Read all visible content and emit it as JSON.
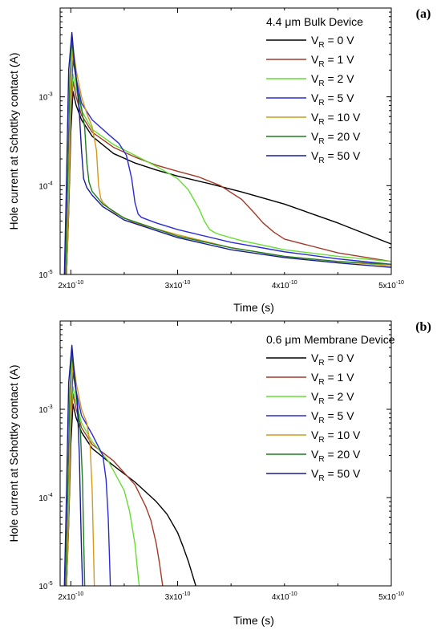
{
  "colors": {
    "0V": "#000000",
    "1V": "#a33a2a",
    "2V": "#66dd33",
    "5V": "#2a2ad8",
    "10V": "#d49a1c",
    "20V": "#1f7d1f",
    "50V": "#1a1a99"
  },
  "chart_data": [
    {
      "type": "line",
      "panel_label": "(a)",
      "xlabel": "Time (s)",
      "ylabel": "Hole current at Schottky contact (A)",
      "xlim": [
        1.9e-10,
        5e-10
      ],
      "ylim": [
        1e-05,
        0.01
      ],
      "yscale": "log",
      "grid": false,
      "legend_title": "4.4 μm Bulk Device",
      "legend_position": "top-right",
      "xticks": [
        {
          "value": 2e-10,
          "label": "2x10",
          "exp": "-10"
        },
        {
          "value": 3e-10,
          "label": "3x10",
          "exp": "-10"
        },
        {
          "value": 4e-10,
          "label": "4x10",
          "exp": "-10"
        },
        {
          "value": 5e-10,
          "label": "5x10",
          "exp": "-10"
        }
      ],
      "yticks": [
        {
          "value": 1e-05,
          "label": "10",
          "exp": "-5"
        },
        {
          "value": 0.0001,
          "label": "10",
          "exp": "-4"
        },
        {
          "value": 0.001,
          "label": "10",
          "exp": "-3"
        }
      ],
      "series": [
        {
          "name": "V_R = 0 V",
          "sub": "R",
          "pre": "V",
          "post": " =  0 V",
          "color_key": "0V",
          "x": [
            1.96e-10,
            1.98e-10,
            2e-10,
            2.02e-10,
            2.05e-10,
            2.1e-10,
            2.2e-10,
            2.4e-10,
            2.6e-10,
            2.8e-10,
            3e-10,
            3.3e-10,
            3.6e-10,
            4e-10,
            4.5e-10,
            5e-10
          ],
          "y": [
            1e-05,
            5e-05,
            0.0004,
            0.00115,
            0.0008,
            0.00055,
            0.00036,
            0.00023,
            0.00018,
            0.00015,
            0.000128,
            0.000105,
            8.5e-05,
            6.2e-05,
            3.8e-05,
            2.2e-05
          ]
        },
        {
          "name": "V_R = 1 V",
          "sub": "R",
          "pre": "V",
          "post": " =  1 V",
          "color_key": "1V",
          "x": [
            1.96e-10,
            1.98e-10,
            2e-10,
            2.02e-10,
            2.05e-10,
            2.1e-10,
            2.2e-10,
            2.4e-10,
            2.6e-10,
            2.8e-10,
            3e-10,
            3.2e-10,
            3.4e-10,
            3.6e-10,
            3.7e-10,
            3.8e-10,
            3.9e-10,
            4e-10,
            4.5e-10,
            5e-10
          ],
          "y": [
            1e-05,
            6e-05,
            0.0006,
            0.0015,
            0.001,
            0.00062,
            0.0004,
            0.00027,
            0.00021,
            0.00017,
            0.000145,
            0.000125,
            0.0001,
            7e-05,
            5.2e-05,
            3.8e-05,
            3e-05,
            2.5e-05,
            1.75e-05,
            1.4e-05
          ]
        },
        {
          "name": "V_R = 2 V",
          "sub": "R",
          "pre": "V",
          "post": " =  2 V",
          "color_key": "2V",
          "x": [
            1.96e-10,
            1.98e-10,
            2e-10,
            2.02e-10,
            2.05e-10,
            2.1e-10,
            2.2e-10,
            2.4e-10,
            2.6e-10,
            2.8e-10,
            3e-10,
            3.1e-10,
            3.2e-10,
            3.25e-10,
            3.3e-10,
            3.35e-10,
            3.4e-10,
            3.6e-10,
            4e-10,
            4.5e-10,
            5e-10
          ],
          "y": [
            1e-05,
            6e-05,
            0.0008,
            0.0018,
            0.0012,
            0.0007,
            0.00043,
            0.00029,
            0.00022,
            0.000165,
            0.00012,
            9e-05,
            5.5e-05,
            4e-05,
            3.2e-05,
            2.95e-05,
            2.8e-05,
            2.4e-05,
            1.9e-05,
            1.6e-05,
            1.4e-05
          ]
        },
        {
          "name": "V_R = 5 V",
          "sub": "R",
          "pre": "V",
          "post": " =  5 V",
          "color_key": "5V",
          "x": [
            1.96e-10,
            1.98e-10,
            2e-10,
            2.02e-10,
            2.05e-10,
            2.1e-10,
            2.2e-10,
            2.35e-10,
            2.45e-10,
            2.52e-10,
            2.57e-10,
            2.6e-10,
            2.63e-10,
            2.66e-10,
            2.8e-10,
            3e-10,
            3.5e-10,
            4e-10,
            4.5e-10,
            5e-10
          ],
          "y": [
            1e-05,
            7e-05,
            0.001,
            0.0026,
            0.0016,
            0.00085,
            0.00055,
            0.00038,
            0.0003,
            0.00022,
            0.00012,
            6.5e-05,
            4.8e-05,
            4.4e-05,
            3.8e-05,
            3.2e-05,
            2.3e-05,
            1.8e-05,
            1.5e-05,
            1.3e-05
          ]
        },
        {
          "name": "V_R = 10 V",
          "sub": "R",
          "pre": "V",
          "post": " = 10 V",
          "color_key": "10V",
          "x": [
            1.96e-10,
            1.98e-10,
            2e-10,
            2.02e-10,
            2.05e-10,
            2.1e-10,
            2.15e-10,
            2.2e-10,
            2.24e-10,
            2.26e-10,
            2.28e-10,
            2.3e-10,
            2.4e-10,
            2.6e-10,
            3e-10,
            3.5e-10,
            4e-10,
            4.5e-10,
            5e-10
          ],
          "y": [
            1e-05,
            8e-05,
            0.0012,
            0.0036,
            0.002,
            0.001,
            0.00065,
            0.00046,
            0.00025,
            0.0001,
            7.2e-05,
            6.5e-05,
            5e-05,
            3.8e-05,
            2.8e-05,
            2e-05,
            1.6e-05,
            1.4e-05,
            1.25e-05
          ]
        },
        {
          "name": "V_R = 20 V",
          "sub": "R",
          "pre": "V",
          "post": " = 20 V",
          "color_key": "20V",
          "x": [
            1.95e-10,
            1.97e-10,
            1.99e-10,
            2.01e-10,
            2.03e-10,
            2.06e-10,
            2.1e-10,
            2.13e-10,
            2.15e-10,
            2.17e-10,
            2.2e-10,
            2.3e-10,
            2.5e-10,
            3e-10,
            3.5e-10,
            4e-10,
            4.5e-10,
            5e-10
          ],
          "y": [
            1e-05,
            0.0001,
            0.0015,
            0.0044,
            0.0024,
            0.0012,
            0.00075,
            0.00045,
            0.00018,
            0.00011,
            8.6e-05,
            6.2e-05,
            4.3e-05,
            2.7e-05,
            2e-05,
            1.6e-05,
            1.4e-05,
            1.3e-05
          ]
        },
        {
          "name": "V_R = 50 V",
          "sub": "R",
          "pre": "V",
          "post": " = 50 V",
          "color_key": "50V",
          "x": [
            1.94e-10,
            1.96e-10,
            1.98e-10,
            2.01e-10,
            2.03e-10,
            2.06e-10,
            2.08e-10,
            2.1e-10,
            2.12e-10,
            2.15e-10,
            2.2e-10,
            2.3e-10,
            2.5e-10,
            3e-10,
            3.5e-10,
            4e-10,
            4.5e-10,
            5e-10
          ],
          "y": [
            1e-05,
            0.00012,
            0.002,
            0.0053,
            0.0028,
            0.0013,
            0.00065,
            0.00025,
            0.00012,
            9.5e-05,
            7.8e-05,
            5.8e-05,
            4.1e-05,
            2.6e-05,
            1.9e-05,
            1.55e-05,
            1.35e-05,
            1.2e-05
          ]
        }
      ]
    },
    {
      "type": "line",
      "panel_label": "(b)",
      "xlabel": "Time (s)",
      "ylabel": "Hole current at Schottky contact (A)",
      "xlim": [
        1.9e-10,
        5e-10
      ],
      "ylim": [
        1e-05,
        0.01
      ],
      "yscale": "log",
      "grid": false,
      "legend_title": "0.6 μm Membrane Device",
      "legend_position": "top-right",
      "xticks": [
        {
          "value": 2e-10,
          "label": "2x10",
          "exp": "-10"
        },
        {
          "value": 3e-10,
          "label": "3x10",
          "exp": "-10"
        },
        {
          "value": 4e-10,
          "label": "4x10",
          "exp": "-10"
        },
        {
          "value": 5e-10,
          "label": "5x10",
          "exp": "-10"
        }
      ],
      "yticks": [
        {
          "value": 1e-05,
          "label": "10",
          "exp": "-5"
        },
        {
          "value": 0.0001,
          "label": "10",
          "exp": "-4"
        },
        {
          "value": 0.001,
          "label": "10",
          "exp": "-3"
        }
      ],
      "series": [
        {
          "name": "V_R = 0 V",
          "sub": "R",
          "pre": "V",
          "post": " =  0 V",
          "color_key": "0V",
          "x": [
            1.96e-10,
            1.98e-10,
            2e-10,
            2.02e-10,
            2.05e-10,
            2.1e-10,
            2.2e-10,
            2.4e-10,
            2.6e-10,
            2.8e-10,
            2.9e-10,
            3e-10,
            3.05e-10,
            3.1e-10,
            3.15e-10,
            3.17e-10
          ],
          "y": [
            1e-05,
            5e-05,
            0.0004,
            0.00115,
            0.0008,
            0.00055,
            0.00036,
            0.00023,
            0.00015,
            9e-05,
            6.5e-05,
            4e-05,
            2.8e-05,
            1.9e-05,
            1.2e-05,
            1e-05
          ]
        },
        {
          "name": "V_R = 1 V",
          "sub": "R",
          "pre": "V",
          "post": " =  1 V",
          "color_key": "1V",
          "x": [
            1.96e-10,
            1.98e-10,
            2e-10,
            2.02e-10,
            2.05e-10,
            2.1e-10,
            2.2e-10,
            2.4e-10,
            2.6e-10,
            2.7e-10,
            2.75e-10,
            2.8e-10,
            2.83e-10,
            2.86e-10
          ],
          "y": [
            1e-05,
            6e-05,
            0.0006,
            0.0015,
            0.001,
            0.00062,
            0.0004,
            0.00026,
            0.00014,
            8e-05,
            5.5e-05,
            3e-05,
            1.8e-05,
            1e-05
          ]
        },
        {
          "name": "V_R = 2 V",
          "sub": "R",
          "pre": "V",
          "post": " =  2 V",
          "color_key": "2V",
          "x": [
            1.96e-10,
            1.98e-10,
            2e-10,
            2.02e-10,
            2.05e-10,
            2.1e-10,
            2.2e-10,
            2.35e-10,
            2.5e-10,
            2.55e-10,
            2.6e-10,
            2.62e-10,
            2.64e-10
          ],
          "y": [
            1e-05,
            6e-05,
            0.0008,
            0.0018,
            0.0012,
            0.0007,
            0.00043,
            0.00026,
            0.00012,
            7e-05,
            3e-05,
            1.7e-05,
            1e-05
          ]
        },
        {
          "name": "V_R = 5 V",
          "sub": "R",
          "pre": "V",
          "post": " =  5 V",
          "color_key": "5V",
          "x": [
            1.96e-10,
            1.98e-10,
            2e-10,
            2.02e-10,
            2.05e-10,
            2.1e-10,
            2.2e-10,
            2.3e-10,
            2.33e-10,
            2.35e-10,
            2.36e-10,
            2.37e-10
          ],
          "y": [
            1e-05,
            7e-05,
            0.001,
            0.0026,
            0.0016,
            0.00085,
            0.00052,
            0.0003,
            0.00016,
            6e-05,
            2.5e-05,
            1e-05
          ]
        },
        {
          "name": "V_R = 10 V",
          "sub": "R",
          "pre": "V",
          "post": " = 10 V",
          "color_key": "10V",
          "x": [
            1.96e-10,
            1.98e-10,
            2e-10,
            2.02e-10,
            2.05e-10,
            2.1e-10,
            2.15e-10,
            2.18e-10,
            2.2e-10,
            2.21e-10,
            2.22e-10
          ],
          "y": [
            1e-05,
            8e-05,
            0.0012,
            0.0036,
            0.002,
            0.001,
            0.0007,
            0.0004,
            0.00012,
            3.5e-05,
            1e-05
          ]
        },
        {
          "name": "V_R = 20 V",
          "sub": "R",
          "pre": "V",
          "post": " = 20 V",
          "color_key": "20V",
          "x": [
            1.95e-10,
            1.97e-10,
            1.99e-10,
            2.01e-10,
            2.03e-10,
            2.06e-10,
            2.09e-10,
            2.11e-10,
            2.12e-10,
            2.13e-10
          ],
          "y": [
            1e-05,
            0.0001,
            0.0015,
            0.0044,
            0.0024,
            0.0012,
            0.00055,
            0.00015,
            3.5e-05,
            1e-05
          ]
        },
        {
          "name": "V_R = 50 V",
          "sub": "R",
          "pre": "V",
          "post": " = 50 V",
          "color_key": "50V",
          "x": [
            1.94e-10,
            1.96e-10,
            1.98e-10,
            2.01e-10,
            2.03e-10,
            2.06e-10,
            2.08e-10,
            2.09e-10,
            2.1e-10,
            2.11e-10
          ],
          "y": [
            1e-05,
            0.00012,
            0.002,
            0.0053,
            0.0028,
            0.0012,
            0.0003,
            8e-05,
            2.5e-05,
            1e-05
          ]
        }
      ]
    }
  ]
}
